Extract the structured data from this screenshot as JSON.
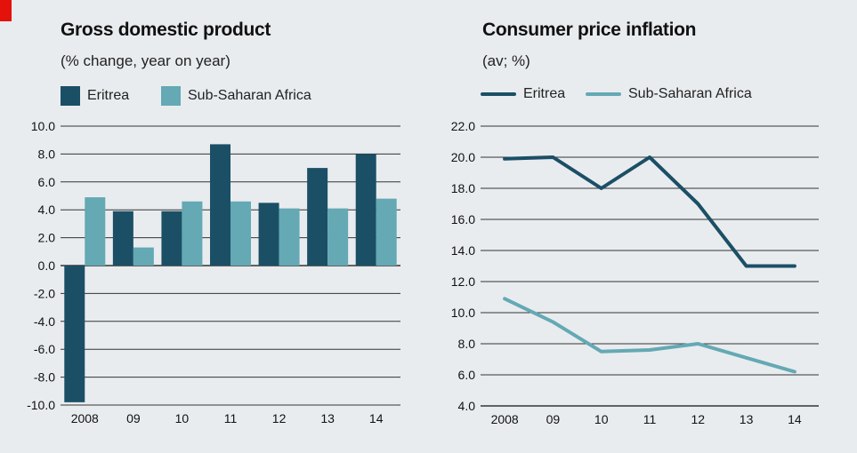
{
  "colors": {
    "eritrea": "#1b4f66",
    "ssa": "#64a9b4",
    "accent": "#e3120b",
    "grid": "#333333"
  },
  "chart_data": [
    {
      "type": "bar",
      "title": "Gross domestic product",
      "subtitle": "(% change, year on year)",
      "categories": [
        "2008",
        "09",
        "10",
        "11",
        "12",
        "13",
        "14"
      ],
      "series": [
        {
          "name": "Eritrea",
          "values": [
            -9.8,
            3.9,
            3.9,
            8.7,
            4.5,
            7.0,
            8.0
          ]
        },
        {
          "name": "Sub-Saharan Africa",
          "values": [
            4.9,
            1.3,
            4.6,
            4.6,
            4.1,
            4.1,
            4.8
          ]
        }
      ],
      "yticks": [
        "10.0",
        "8.0",
        "6.0",
        "4.0",
        "2.0",
        "0.0",
        "-2.0",
        "-4.0",
        "-6.0",
        "-8.0",
        "-10.0"
      ],
      "ylim": [
        -10,
        10
      ]
    },
    {
      "type": "line",
      "title": "Consumer price inflation",
      "subtitle": "(av; %)",
      "categories": [
        "2008",
        "09",
        "10",
        "11",
        "12",
        "13",
        "14"
      ],
      "series": [
        {
          "name": "Eritrea",
          "values": [
            19.9,
            20.0,
            18.0,
            20.0,
            17.0,
            13.0,
            13.0
          ]
        },
        {
          "name": "Sub-Saharan Africa",
          "values": [
            10.9,
            9.4,
            7.5,
            7.6,
            8.0,
            7.1,
            6.2
          ]
        }
      ],
      "yticks": [
        "22.0",
        "20.0",
        "18.0",
        "16.0",
        "14.0",
        "12.0",
        "10.0",
        "8.0",
        "6.0",
        "4.0"
      ],
      "ylim": [
        4,
        22
      ]
    }
  ]
}
